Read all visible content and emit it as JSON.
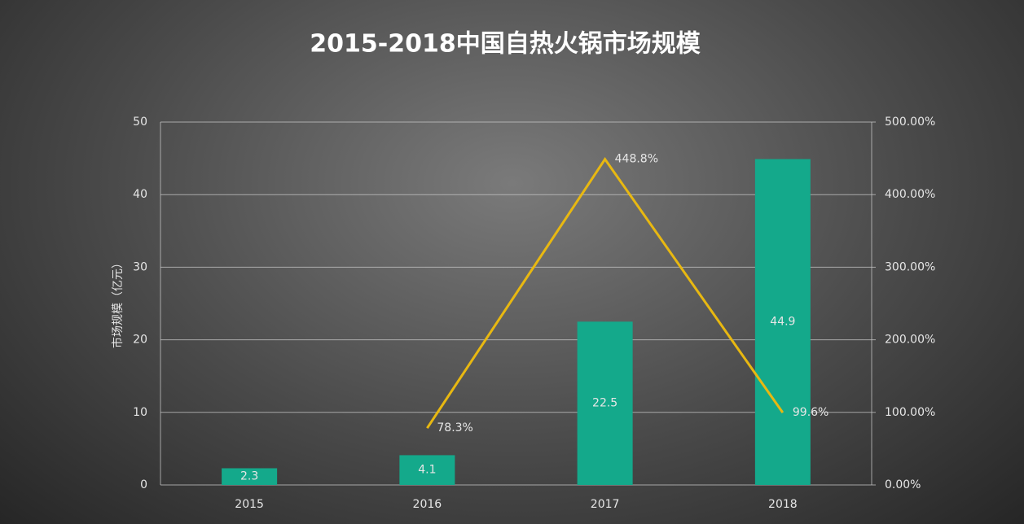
{
  "chart_data": {
    "type": "bar",
    "title": "2015-2018中国自热火锅市场规模",
    "y_label": "市场规模（亿元）",
    "categories": [
      "2015",
      "2016",
      "2017",
      "2018"
    ],
    "series": [
      {
        "type": "bar",
        "color": "#14a98b",
        "values": [
          2.3,
          4.1,
          22.5,
          44.9
        ]
      },
      {
        "type": "line",
        "axis": "y2",
        "color": "#e8b811",
        "values": [
          null,
          78.3,
          448.8,
          99.6
        ],
        "value_labels": [
          null,
          "78.3%",
          "448.8%",
          "99.6%"
        ]
      }
    ],
    "ylim": [
      0,
      50
    ],
    "yticks": [
      0,
      10,
      20,
      30,
      40,
      50
    ],
    "y2lim": [
      0,
      500
    ],
    "y2ticks": [
      {
        "value": 0,
        "label": "0.00%"
      },
      {
        "value": 100,
        "label": "100.00%"
      },
      {
        "value": 200,
        "label": "200.00%"
      },
      {
        "value": 300,
        "label": "300.00%"
      },
      {
        "value": 400,
        "label": "400.00%"
      },
      {
        "value": 500,
        "label": "500.00%"
      }
    ],
    "grid": true
  }
}
